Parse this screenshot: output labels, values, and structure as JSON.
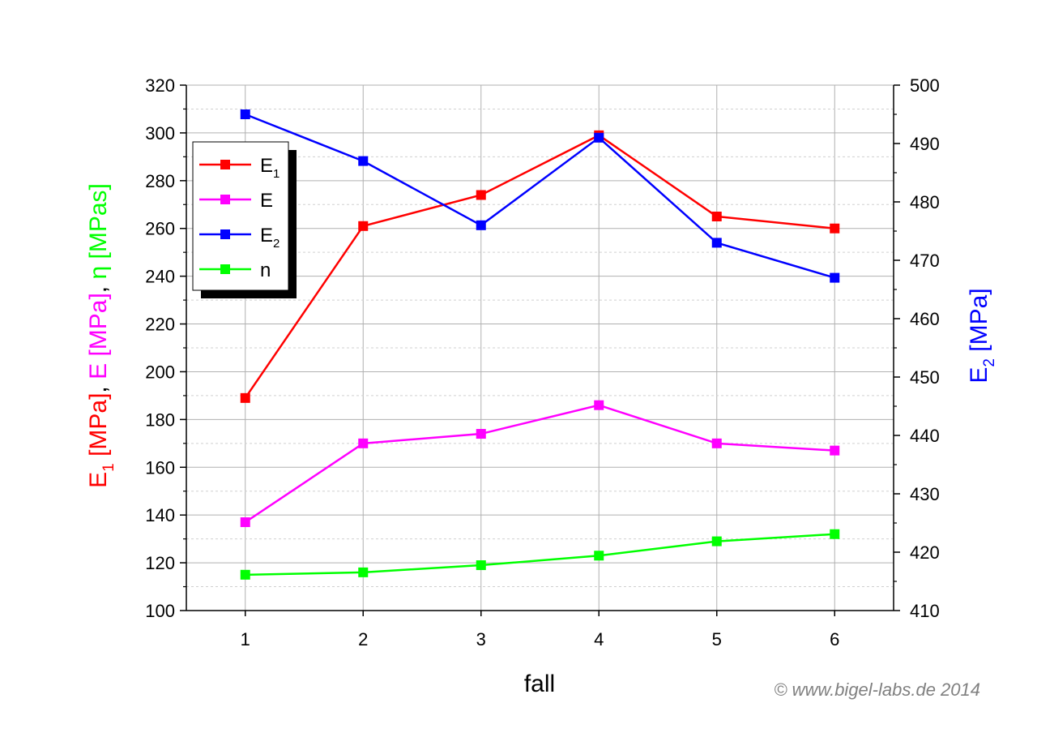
{
  "chart_data": {
    "type": "line",
    "x": [
      1,
      2,
      3,
      4,
      5,
      6
    ],
    "xlabel": "fall",
    "xlim": [
      0.5,
      6.5
    ],
    "xticks": [
      1,
      2,
      3,
      4,
      5,
      6
    ],
    "ylim_left": [
      100,
      320
    ],
    "yticks_left": [
      100,
      120,
      140,
      160,
      180,
      200,
      220,
      240,
      260,
      280,
      300,
      320
    ],
    "ylim_right": [
      410,
      500
    ],
    "yticks_right": [
      410,
      420,
      430,
      440,
      450,
      460,
      470,
      480,
      490,
      500
    ],
    "ylabel_left": {
      "parts": [
        {
          "text": "E",
          "color": "#ff0000"
        },
        {
          "text": "1",
          "color": "#ff0000",
          "sub": true
        },
        {
          "text": " [MPa]",
          "color": "#ff0000"
        },
        {
          "text": ", ",
          "color": "#000000"
        },
        {
          "text": "E [MPa]",
          "color": "#ff00ff"
        },
        {
          "text": ", ",
          "color": "#000000"
        },
        {
          "text": "η [MPas]",
          "color": "#00ff00"
        }
      ]
    },
    "ylabel_right": {
      "parts": [
        {
          "text": "E",
          "color": "#0000ff"
        },
        {
          "text": "2",
          "color": "#0000ff",
          "sub": true
        },
        {
          "text": " [MPa]",
          "color": "#0000ff"
        }
      ]
    },
    "grid": true,
    "legend_position": "top-left",
    "series": [
      {
        "name": "E",
        "sub": "1",
        "color": "#ff0000",
        "axis": "left",
        "values": [
          189,
          261,
          274,
          299,
          265,
          260
        ]
      },
      {
        "name": "E",
        "sub": "",
        "color": "#ff00ff",
        "axis": "left",
        "values": [
          137,
          170,
          174,
          186,
          170,
          167
        ]
      },
      {
        "name": "E",
        "sub": "2",
        "color": "#0000ff",
        "axis": "right",
        "values": [
          495,
          487,
          476,
          491,
          473,
          467
        ]
      },
      {
        "name": "n",
        "sub": "",
        "color": "#00ff00",
        "axis": "left",
        "values": [
          115,
          116,
          119,
          123,
          129,
          132
        ]
      }
    ]
  },
  "credit": "© www.bigel-labs.de 2014"
}
